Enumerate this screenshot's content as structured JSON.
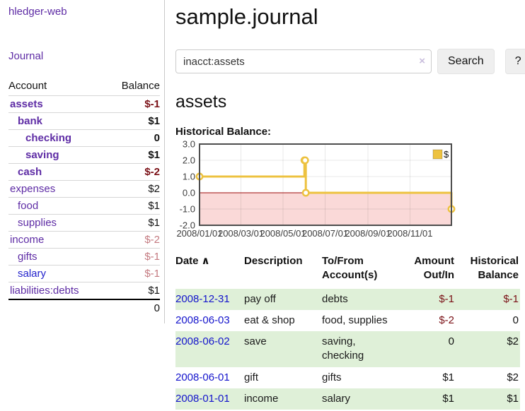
{
  "app": {
    "title": "hledger-web"
  },
  "colors": {
    "link_purple": "#5e2ca5",
    "link_blue": "#2323cc",
    "date_blue": "#1414cc",
    "neg_strong": "#7a1016",
    "neg_weak": "#c47a80",
    "stripe_green": "#dff0d8"
  },
  "sidebar": {
    "journal_label": "Journal",
    "table": {
      "account_header": "Account",
      "balance_header": "Balance",
      "rows": [
        {
          "name": "assets",
          "balance": "$-1",
          "indent": 0,
          "strong": true,
          "negative": "strong"
        },
        {
          "name": "bank",
          "balance": "$1",
          "indent": 1,
          "strong": true
        },
        {
          "name": "checking",
          "balance": "0",
          "indent": 2,
          "strong": true
        },
        {
          "name": "saving",
          "balance": "$1",
          "indent": 2,
          "strong": true
        },
        {
          "name": "cash",
          "balance": "$-2",
          "indent": 1,
          "strong": true,
          "negative": "strong"
        },
        {
          "name": "expenses",
          "balance": "$2",
          "indent": 0
        },
        {
          "name": "food",
          "balance": "$1",
          "indent": 1
        },
        {
          "name": "supplies",
          "balance": "$1",
          "indent": 1
        },
        {
          "name": "income",
          "balance": "$-2",
          "indent": 0,
          "negative": "weak"
        },
        {
          "name": "gifts",
          "balance": "$-1",
          "indent": 1,
          "negative": "weak"
        },
        {
          "name": "salary",
          "balance": "$-1",
          "indent": 1,
          "negative": "weak",
          "link_style": "unvisited"
        },
        {
          "name": "liabilities:debts",
          "balance": "$1",
          "indent": 0
        }
      ],
      "total": "0"
    }
  },
  "main": {
    "title": "sample.journal",
    "search": {
      "value": "inacct:assets",
      "clear_icon": "×",
      "button_label": "Search",
      "help_label": "?"
    },
    "account_heading": "assets",
    "chart_label": "Historical Balance:"
  },
  "chart_data": {
    "type": "line",
    "title": "Historical Balance",
    "series": [
      {
        "name": "$",
        "color": "#edc240",
        "step": true,
        "points": [
          {
            "date": "2008-01-01",
            "value": 1
          },
          {
            "date": "2008-06-01",
            "value": 2
          },
          {
            "date": "2008-06-02",
            "value": 2
          },
          {
            "date": "2008-06-03",
            "value": 0
          },
          {
            "date": "2008-12-31",
            "value": -1
          }
        ]
      }
    ],
    "x_ticks": [
      "2008/01/01",
      "2008/03/01",
      "2008/05/01",
      "2008/07/01",
      "2008/09/01",
      "2008/11/01"
    ],
    "y_ticks": [
      3.0,
      2.0,
      1.0,
      0.0,
      -1.0,
      -2.0
    ],
    "xlim": [
      "2008-01-01",
      "2008-12-31"
    ],
    "ylim": [
      -2,
      3
    ],
    "legend": {
      "label": "$",
      "position": "top-right"
    },
    "grid": true,
    "negative_region_color": "#fad9d8",
    "zero_line_color": "#9c0b0b",
    "border_color": "#4d4d4d"
  },
  "register_table": {
    "sort_icon": "∧",
    "columns": [
      {
        "label": "Date"
      },
      {
        "label": "Description"
      },
      {
        "label": "To/From Account(s)"
      },
      {
        "label": "Amount Out/In",
        "align": "right"
      },
      {
        "label": "Historical Balance",
        "align": "right"
      }
    ],
    "rows": [
      {
        "date": "2008-12-31",
        "description": "pay off",
        "accounts": "debts",
        "amount": "$-1",
        "amount_negative": true,
        "balance": "$-1",
        "balance_negative": true
      },
      {
        "date": "2008-06-03",
        "description": "eat & shop",
        "accounts": "food, supplies",
        "amount": "$-2",
        "amount_negative": true,
        "balance": "0",
        "balance_negative": false
      },
      {
        "date": "2008-06-02",
        "description": "save",
        "accounts": "saving, checking",
        "amount": "0",
        "amount_negative": false,
        "balance": "$2",
        "balance_negative": false
      },
      {
        "date": "2008-06-01",
        "description": "gift",
        "accounts": "gifts",
        "amount": "$1",
        "amount_negative": false,
        "balance": "$2",
        "balance_negative": false
      },
      {
        "date": "2008-01-01",
        "description": "income",
        "accounts": "salary",
        "amount": "$1",
        "amount_negative": false,
        "balance": "$1",
        "balance_negative": false
      }
    ]
  }
}
